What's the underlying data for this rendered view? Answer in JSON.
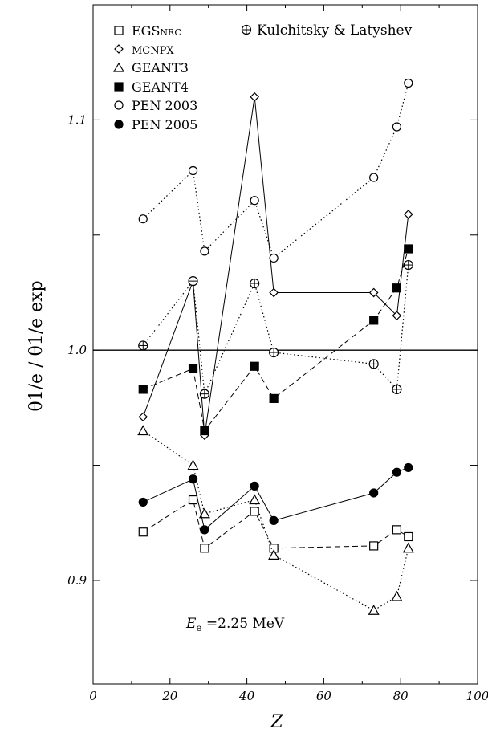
{
  "chart_data": {
    "type": "line",
    "xlabel": "Z",
    "ylabel": "θ1/e / θ1/e exp",
    "xlim": [
      0,
      100
    ],
    "ylim": [
      0.855,
      1.15
    ],
    "x_ticks": [
      0,
      20,
      40,
      60,
      80,
      100
    ],
    "x_tick_labels": [
      "0",
      "20",
      "40",
      "60",
      "80",
      "100"
    ],
    "y_ticks": [
      0.9,
      0.95,
      1.0,
      1.05,
      1.1
    ],
    "y_tick_labels": [
      "0.9",
      "",
      "1.0",
      "",
      "1.1"
    ],
    "reference_line_y": 1.0,
    "grid": false,
    "legend_position": "top",
    "annotation": "E_e =2.25 MeV",
    "annotation_parts": {
      "symbol": "E",
      "subscript": "e",
      "text": " =2.25 MeV"
    },
    "series": [
      {
        "name": "EGSnrc",
        "marker": "open-square",
        "line": "dashed",
        "x": [
          13,
          26,
          29,
          42,
          47,
          73,
          79,
          82
        ],
        "y": [
          0.921,
          0.935,
          0.914,
          0.93,
          0.914,
          0.915,
          0.922,
          0.919
        ]
      },
      {
        "name": "MCNPX",
        "marker": "open-diamond",
        "line": "solid",
        "x": [
          13,
          26,
          29,
          42,
          47,
          73,
          79,
          82
        ],
        "y": [
          0.971,
          1.03,
          0.963,
          1.11,
          1.025,
          1.025,
          1.015,
          1.059
        ]
      },
      {
        "name": "GEANT3",
        "marker": "open-triangle",
        "line": "dotted",
        "x": [
          13,
          26,
          29,
          42,
          47,
          73,
          79,
          82
        ],
        "y": [
          0.965,
          0.95,
          0.929,
          0.935,
          0.911,
          0.887,
          0.893,
          0.914
        ]
      },
      {
        "name": "GEANT4",
        "marker": "filled-square",
        "line": "dashed",
        "x": [
          13,
          26,
          29,
          42,
          47,
          73,
          79,
          82
        ],
        "y": [
          0.983,
          0.992,
          0.965,
          0.993,
          0.979,
          1.013,
          1.027,
          1.044
        ]
      },
      {
        "name": "PEN 2003",
        "marker": "open-circle",
        "line": "dotted",
        "x": [
          13,
          26,
          29,
          42,
          47,
          73,
          79,
          82
        ],
        "y": [
          1.057,
          1.078,
          1.043,
          1.065,
          1.04,
          1.075,
          1.097,
          1.116
        ]
      },
      {
        "name": "PEN 2005",
        "marker": "filled-circle",
        "line": "solid",
        "x": [
          13,
          26,
          29,
          42,
          47,
          73,
          79,
          82
        ],
        "y": [
          0.934,
          0.944,
          0.922,
          0.941,
          0.926,
          0.938,
          0.947,
          0.949
        ]
      },
      {
        "name": "Kulchitsky & Latyshev",
        "marker": "circle-plus",
        "line": "dotted",
        "x": [
          13,
          26,
          29,
          42,
          47,
          73,
          79,
          82
        ],
        "y": [
          1.002,
          1.03,
          0.981,
          1.029,
          0.999,
          0.994,
          0.983,
          1.037
        ]
      }
    ]
  }
}
